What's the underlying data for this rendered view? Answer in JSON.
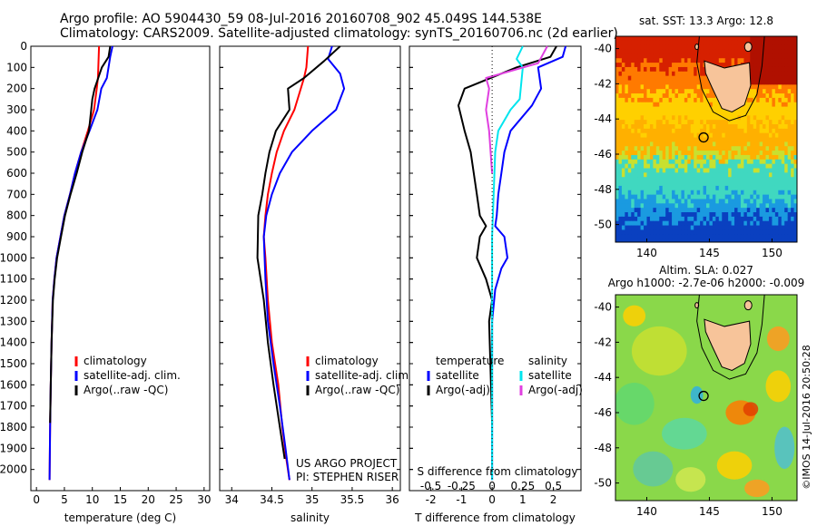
{
  "header": {
    "title_line1": "Argo profile: AO 5904430_59 08-Jul-2016 20160708_902 45.049S 144.538E",
    "title_line2": "Climatology: CARS2009. Satellite-adjusted climatology: synTS_20160706.nc (2d earlier)"
  },
  "colors": {
    "climatology": "#ff0000",
    "satellite": "#0000ff",
    "argo": "#000000",
    "sal_satellite": "#00e5ee",
    "sal_argo": "#e040e0"
  },
  "chart_data": [
    {
      "type": "line",
      "name": "temperature-profile",
      "xlabel": "temperature (deg C)",
      "ylabel": "",
      "xlim": [
        -1,
        31
      ],
      "ylim": [
        2100,
        0
      ],
      "xticks": [
        "0",
        "5",
        "10",
        "15",
        "20",
        "25",
        "30"
      ],
      "yticks": [
        "0",
        "100",
        "200",
        "300",
        "400",
        "500",
        "600",
        "700",
        "800",
        "900",
        "1000",
        "1100",
        "1200",
        "1300",
        "1400",
        "1500",
        "1600",
        "1700",
        "1800",
        "1900",
        "2000"
      ],
      "legend": [
        "climatology",
        "satellite-adj. clim.",
        "Argo(..raw -QC)"
      ],
      "legend_position": "lower-right",
      "series": [
        {
          "name": "climatology",
          "color": "#ff0000",
          "x": [
            11.2,
            11.0,
            10.8,
            10.3,
            9.2,
            8.0,
            6.9,
            6.0,
            5.0,
            4.3,
            3.6,
            3.2,
            2.9,
            2.7,
            2.55,
            2.45,
            2.35
          ],
          "y": [
            0,
            150,
            200,
            300,
            400,
            500,
            600,
            700,
            800,
            900,
            1000,
            1100,
            1200,
            1400,
            1600,
            1800,
            2050
          ]
        },
        {
          "name": "satellite-adj. clim.",
          "color": "#0000ff",
          "x": [
            13.6,
            13.2,
            12.6,
            11.6,
            10.9,
            9.5,
            8.0,
            6.9,
            6.0,
            5.0,
            4.3,
            3.6,
            3.2,
            2.9,
            2.7,
            2.55,
            2.45,
            2.35
          ],
          "y": [
            0,
            50,
            150,
            200,
            300,
            400,
            500,
            600,
            700,
            800,
            900,
            1000,
            1100,
            1200,
            1400,
            1600,
            1800,
            2050
          ]
        },
        {
          "name": "Argo(..raw -QC)",
          "color": "#000000",
          "x": [
            13.2,
            12.9,
            11.7,
            10.4,
            10.0,
            9.4,
            8.2,
            7.2,
            6.1,
            5.1,
            4.4,
            3.7,
            3.25,
            2.95,
            2.7,
            2.55,
            2.45
          ],
          "y": [
            0,
            50,
            100,
            200,
            250,
            400,
            500,
            600,
            700,
            800,
            900,
            1000,
            1100,
            1200,
            1400,
            1600,
            1780
          ]
        }
      ]
    },
    {
      "type": "line",
      "name": "salinity-profile",
      "xlabel": "salinity",
      "xlim": [
        33.85,
        36.1
      ],
      "ylim": [
        2100,
        0
      ],
      "xticks": [
        "34",
        "34.5",
        "35",
        "35.5",
        "36"
      ],
      "legend": [
        "climatology",
        "satellite-adj. clim.",
        "Argo(..raw -QC)"
      ],
      "legend_position": "lower-right",
      "annotation": [
        "US ARGO PROJECT",
        "PI: STEPHEN RISER"
      ],
      "series": [
        {
          "name": "climatology",
          "color": "#ff0000",
          "x": [
            34.95,
            34.93,
            34.9,
            34.78,
            34.65,
            34.56,
            34.5,
            34.45,
            34.42,
            34.4,
            34.42,
            34.45,
            34.5,
            34.58,
            34.63,
            34.68,
            34.72
          ],
          "y": [
            0,
            100,
            150,
            300,
            400,
            500,
            600,
            700,
            800,
            900,
            1000,
            1200,
            1400,
            1600,
            1800,
            1950,
            2050
          ]
        },
        {
          "name": "satellite-adj. clim.",
          "color": "#0000ff",
          "x": [
            35.25,
            35.2,
            35.35,
            35.4,
            35.3,
            35.0,
            34.75,
            34.6,
            34.5,
            34.43,
            34.4,
            34.42,
            34.45,
            34.52,
            34.6,
            34.67,
            34.72
          ],
          "y": [
            0,
            60,
            130,
            200,
            300,
            400,
            500,
            600,
            700,
            800,
            900,
            1100,
            1300,
            1500,
            1700,
            1900,
            2050
          ]
        },
        {
          "name": "Argo(..raw -QC)",
          "color": "#000000",
          "x": [
            35.35,
            35.15,
            34.9,
            34.7,
            34.72,
            34.55,
            34.47,
            34.42,
            34.38,
            34.33,
            34.32,
            34.4,
            34.45,
            34.52,
            34.6,
            34.66
          ],
          "y": [
            0,
            70,
            150,
            200,
            300,
            400,
            500,
            600,
            700,
            800,
            1000,
            1200,
            1400,
            1600,
            1800,
            1950
          ]
        }
      ]
    },
    {
      "type": "line",
      "name": "difference-profile",
      "xlabel": "T difference from climatology",
      "xlabel_top": "S difference from climatology",
      "xlim": [
        -2.7,
        2.9
      ],
      "ylim": [
        2100,
        0
      ],
      "xticks": [
        "-2",
        "-1",
        "0",
        "1",
        "2"
      ],
      "xticks_top": [
        "-0.5",
        "-0.25",
        "0",
        "0.25",
        "0.5"
      ],
      "legend_temperature": [
        "temperature",
        "satellite",
        "Argo(-adj)"
      ],
      "legend_salinity": [
        "salinity",
        "satellite",
        "Argo(-adj)"
      ],
      "series": [
        {
          "name": "satellite",
          "group": "temperature",
          "color": "#0000ff",
          "x": [
            2.4,
            2.3,
            1.5,
            1.6,
            1.3,
            0.6,
            0.4,
            0.3,
            0.2,
            0.15,
            0.1,
            0.4,
            0.5,
            0.3,
            0.1,
            0.0,
            0.0,
            0.0
          ],
          "y": [
            0,
            50,
            100,
            200,
            280,
            400,
            500,
            600,
            700,
            800,
            850,
            900,
            1000,
            1050,
            1150,
            1300,
            1600,
            2050
          ]
        },
        {
          "name": "Argo(-adj)",
          "group": "temperature",
          "color": "#000000",
          "x": [
            2.1,
            1.9,
            0.8,
            -0.9,
            -1.1,
            -0.9,
            -0.7,
            -0.6,
            -0.5,
            -0.4,
            -0.2,
            -0.4,
            -0.5,
            -0.2,
            0.0,
            -0.1,
            0.0
          ],
          "y": [
            0,
            50,
            100,
            200,
            280,
            400,
            500,
            600,
            700,
            800,
            850,
            900,
            1000,
            1100,
            1200,
            1300,
            1780
          ]
        },
        {
          "name": "satellite",
          "group": "salinity",
          "color": "#00e5ee",
          "x": [
            1.0,
            0.8,
            1.0,
            0.9,
            0.6,
            0.2,
            0.1,
            0.05,
            0.0,
            0.0,
            0.0
          ],
          "y": [
            0,
            60,
            100,
            250,
            300,
            400,
            500,
            700,
            900,
            1300,
            2050
          ]
        },
        {
          "name": "Argo(-adj)",
          "group": "salinity",
          "color": "#e040e0",
          "x": [
            1.8,
            1.5,
            -0.2,
            -0.1,
            -0.2,
            -0.1,
            0.0
          ],
          "y": [
            0,
            80,
            150,
            200,
            300,
            400,
            600
          ]
        }
      ]
    },
    {
      "type": "heatmap",
      "name": "sst-map",
      "title": "sat. SST: 13.3  Argo: 12.8",
      "xlim": [
        137.5,
        152
      ],
      "ylim": [
        -51,
        -39.3
      ],
      "xticks": [
        "140",
        "145",
        "150"
      ],
      "yticks": [
        "-40",
        "-42",
        "-44",
        "-46",
        "-48",
        "-50"
      ],
      "argo_position": [
        144.538,
        -45.049
      ]
    },
    {
      "type": "heatmap",
      "name": "sla-map",
      "title_line1": "Altim. SLA: 0.027",
      "title_line2": "Argo h1000: -2.7e-06 h2000: -0.009",
      "xlim": [
        137.5,
        152
      ],
      "ylim": [
        -51,
        -39.3
      ],
      "xticks": [
        "140",
        "145",
        "150"
      ],
      "yticks": [
        "-40",
        "-42",
        "-44",
        "-46",
        "-48",
        "-50"
      ],
      "argo_position": [
        144.538,
        -45.049
      ],
      "side_label": "©IMOS 14-Jul-2016 20:50:28"
    }
  ]
}
